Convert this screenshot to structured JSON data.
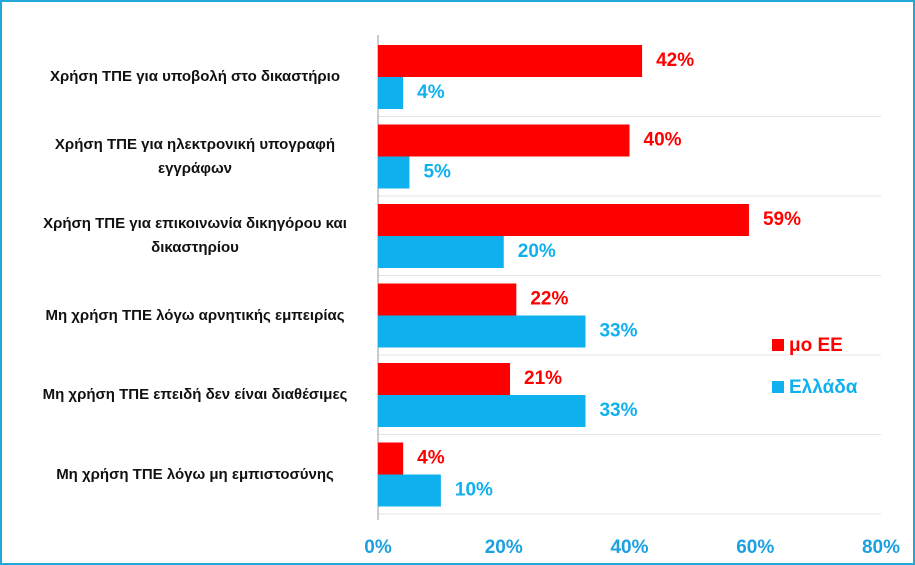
{
  "chart_data": {
    "type": "barh",
    "categories": [
      "Χρήση ΤΠΕ για υποβολή στο δικαστήριο",
      "Χρήση ΤΠΕ για ηλεκτρονική υπογραφή εγγράφων",
      "Χρήση ΤΠΕ για επικοινωνία δικηγόρου και δικαστηρίου",
      "Μη χρήση ΤΠΕ λόγω αρνητικής εμπειρίας",
      "Μη χρήση ΤΠΕ επειδή δεν είναι διαθέσιμες",
      "Μη χρήση ΤΠΕ λόγω μη εμπιστοσύνης"
    ],
    "series": [
      {
        "name": "μο ΕΕ",
        "color": "#ff0000",
        "values": [
          42,
          40,
          59,
          22,
          21,
          4
        ],
        "value_labels": [
          "42%",
          "40%",
          "59%",
          "22%",
          "21%",
          "4%"
        ]
      },
      {
        "name": "Ελλάδα",
        "color": "#0fb0ee",
        "values": [
          4,
          5,
          20,
          33,
          33,
          10
        ],
        "value_labels": [
          "4%",
          "5%",
          "20%",
          "33%",
          "33%",
          "10%"
        ]
      }
    ],
    "xlim": [
      0,
      80
    ],
    "xticks": [
      {
        "value": 0,
        "label": "0%"
      },
      {
        "value": 20,
        "label": "20%"
      },
      {
        "value": 40,
        "label": "40%"
      },
      {
        "value": 60,
        "label": "60%"
      },
      {
        "value": 80,
        "label": "80%"
      }
    ],
    "legend": "right"
  }
}
